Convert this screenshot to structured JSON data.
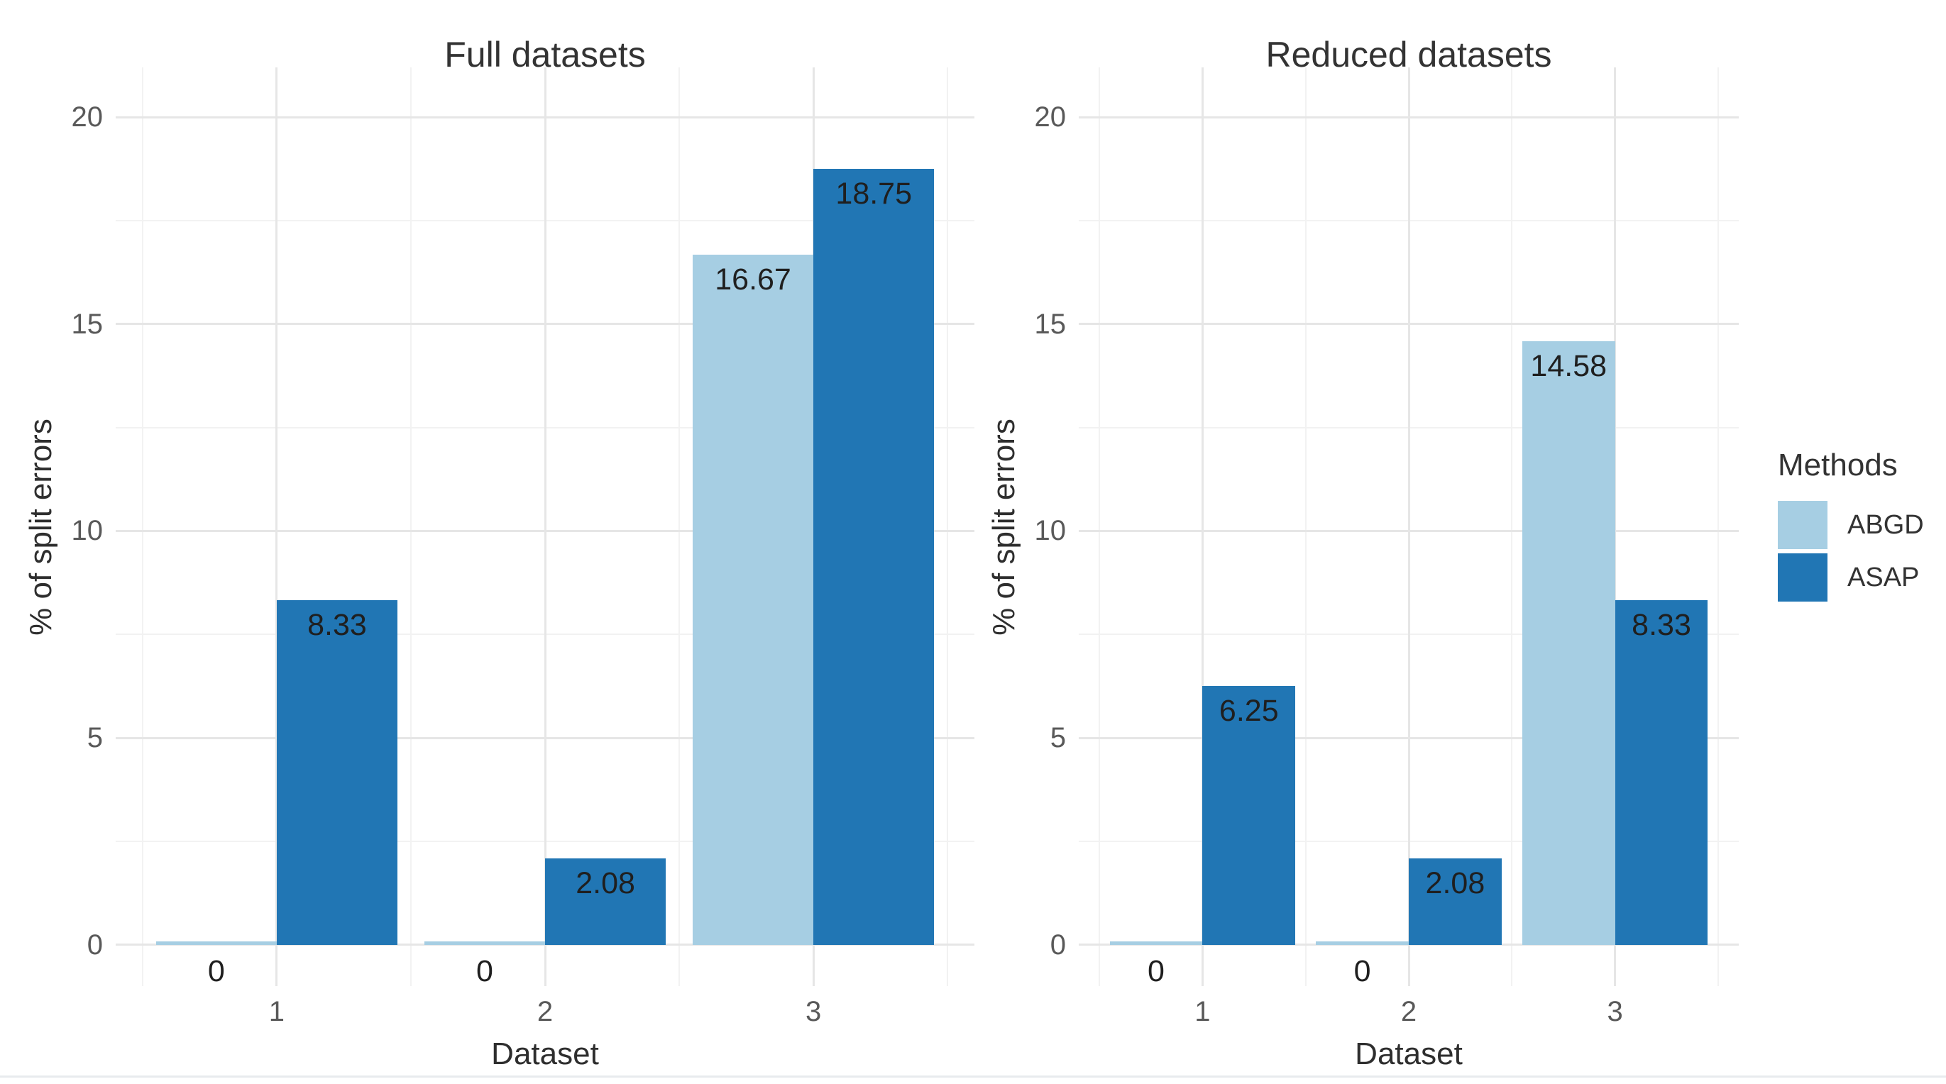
{
  "chart_data": [
    {
      "type": "bar",
      "title": "Full datasets",
      "xlabel": "Dataset",
      "ylabel": "% of split errors",
      "categories": [
        "1",
        "2",
        "3"
      ],
      "series": [
        {
          "name": "ABGD",
          "color": "#A6CEE3",
          "values": [
            0,
            0,
            16.67
          ],
          "value_labels": [
            "0",
            "0",
            "16.67"
          ]
        },
        {
          "name": "ASAP",
          "color": "#2176B4",
          "values": [
            8.33,
            2.08,
            18.75
          ],
          "value_labels": [
            "8.33",
            "2.08",
            "18.75"
          ]
        }
      ],
      "y_ticks": [
        "0",
        "5",
        "10",
        "15",
        "20"
      ],
      "y_tick_values": [
        0,
        5,
        10,
        15,
        20
      ],
      "ylim": [
        0,
        20
      ],
      "grid": "on",
      "legend_position": "none"
    },
    {
      "type": "bar",
      "title": "Reduced datasets",
      "xlabel": "Dataset",
      "ylabel": "% of split errors",
      "categories": [
        "1",
        "2",
        "3"
      ],
      "series": [
        {
          "name": "ABGD",
          "color": "#A6CEE3",
          "values": [
            0,
            0,
            14.58
          ],
          "value_labels": [
            "0",
            "0",
            "14.58"
          ]
        },
        {
          "name": "ASAP",
          "color": "#2176B4",
          "values": [
            6.25,
            2.08,
            8.33
          ],
          "value_labels": [
            "6.25",
            "2.08",
            "8.33"
          ]
        }
      ],
      "y_ticks": [
        "0",
        "5",
        "10",
        "15",
        "20"
      ],
      "y_tick_values": [
        0,
        5,
        10,
        15,
        20
      ],
      "ylim": [
        0,
        20
      ],
      "grid": "on",
      "legend_position": "right"
    }
  ],
  "legend": {
    "title": "Methods",
    "items": [
      {
        "label": "ABGD",
        "color": "#A6CEE3"
      },
      {
        "label": "ASAP",
        "color": "#2176B4"
      }
    ]
  },
  "colors": {
    "background": "#ffffff",
    "grid_major": "#e6e6e6",
    "grid_minor": "#f2f2f2",
    "tick_text": "#595959",
    "title_text": "#333333"
  }
}
